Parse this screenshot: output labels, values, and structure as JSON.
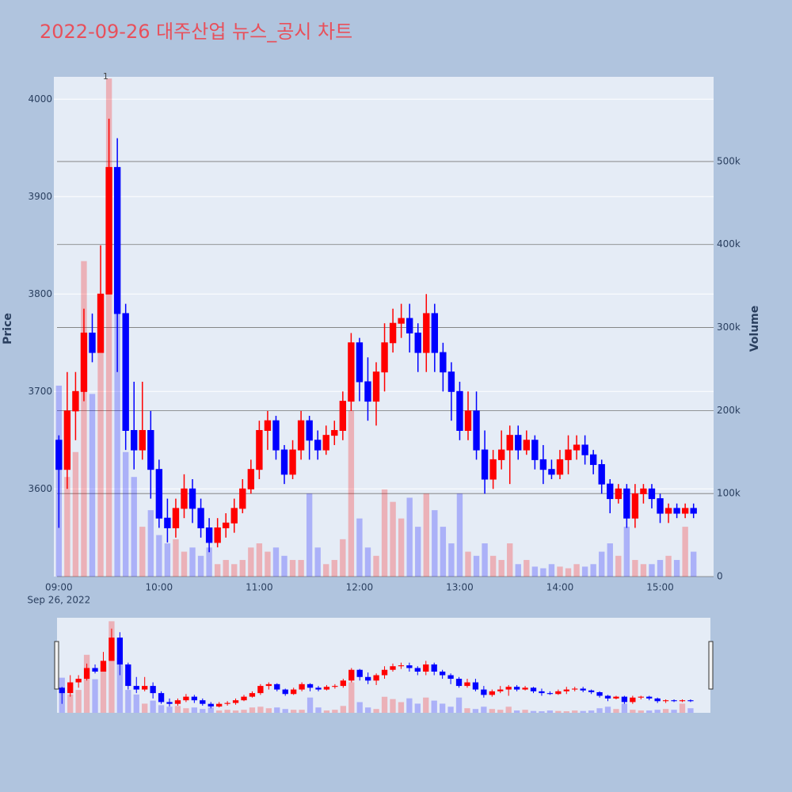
{
  "chart_data": {
    "type": "candlestick",
    "title": "2022-09-26 대주산업 뉴스_공시 차트",
    "y_label": "Price",
    "y2_label": "Volume",
    "x": [
      "09:00",
      "09:05",
      "09:10",
      "09:15",
      "09:20",
      "09:25",
      "09:30",
      "09:35",
      "09:40",
      "09:45",
      "09:50",
      "09:55",
      "10:00",
      "10:05",
      "10:10",
      "10:15",
      "10:20",
      "10:25",
      "10:30",
      "10:35",
      "10:40",
      "10:45",
      "10:50",
      "10:55",
      "11:00",
      "11:05",
      "11:10",
      "11:15",
      "11:20",
      "11:25",
      "11:30",
      "11:35",
      "11:40",
      "11:45",
      "11:50",
      "11:55",
      "12:00",
      "12:05",
      "12:10",
      "12:15",
      "12:20",
      "12:25",
      "12:30",
      "12:35",
      "12:40",
      "12:45",
      "12:50",
      "12:55",
      "13:00",
      "13:05",
      "13:10",
      "13:15",
      "13:20",
      "13:25",
      "13:30",
      "13:35",
      "13:40",
      "13:45",
      "13:50",
      "13:55",
      "14:00",
      "14:05",
      "14:10",
      "14:15",
      "14:20",
      "14:25",
      "14:30",
      "14:35",
      "14:40",
      "14:45",
      "14:50",
      "14:55",
      "15:00",
      "15:05",
      "15:10",
      "15:15",
      "15:20"
    ],
    "open": [
      3650,
      3620,
      3680,
      3700,
      3760,
      3740,
      3800,
      3930,
      3780,
      3660,
      3640,
      3660,
      3620,
      3570,
      3560,
      3580,
      3600,
      3580,
      3560,
      3545,
      3560,
      3565,
      3580,
      3600,
      3620,
      3660,
      3670,
      3640,
      3615,
      3640,
      3670,
      3650,
      3640,
      3655,
      3660,
      3690,
      3750,
      3710,
      3690,
      3720,
      3750,
      3770,
      3775,
      3760,
      3740,
      3780,
      3740,
      3720,
      3700,
      3660,
      3680,
      3640,
      3610,
      3630,
      3640,
      3655,
      3640,
      3650,
      3630,
      3620,
      3615,
      3630,
      3640,
      3645,
      3635,
      3625,
      3605,
      3590,
      3600,
      3570,
      3595,
      3600,
      3590,
      3575,
      3580,
      3575,
      3580
    ],
    "high": [
      3655,
      3720,
      3720,
      3785,
      3780,
      3850,
      3980,
      3960,
      3790,
      3710,
      3710,
      3680,
      3630,
      3590,
      3590,
      3615,
      3610,
      3590,
      3570,
      3570,
      3575,
      3590,
      3610,
      3630,
      3670,
      3680,
      3675,
      3645,
      3650,
      3680,
      3675,
      3660,
      3665,
      3670,
      3700,
      3760,
      3755,
      3735,
      3730,
      3770,
      3785,
      3790,
      3790,
      3770,
      3800,
      3790,
      3750,
      3730,
      3710,
      3700,
      3700,
      3660,
      3640,
      3660,
      3665,
      3665,
      3660,
      3655,
      3645,
      3630,
      3640,
      3655,
      3655,
      3655,
      3640,
      3630,
      3610,
      3605,
      3605,
      3605,
      3605,
      3605,
      3595,
      3585,
      3585,
      3585,
      3585
    ],
    "low": [
      3560,
      3600,
      3650,
      3690,
      3730,
      3740,
      3800,
      3720,
      3640,
      3620,
      3630,
      3590,
      3560,
      3545,
      3550,
      3570,
      3565,
      3550,
      3535,
      3540,
      3550,
      3555,
      3575,
      3595,
      3610,
      3640,
      3630,
      3605,
      3610,
      3630,
      3630,
      3630,
      3635,
      3645,
      3650,
      3680,
      3690,
      3670,
      3665,
      3700,
      3740,
      3755,
      3740,
      3720,
      3720,
      3720,
      3700,
      3670,
      3650,
      3650,
      3630,
      3595,
      3600,
      3620,
      3605,
      3630,
      3635,
      3620,
      3605,
      3610,
      3610,
      3615,
      3630,
      3625,
      3615,
      3595,
      3575,
      3585,
      3560,
      3560,
      3585,
      3580,
      3565,
      3565,
      3570,
      3570,
      3570
    ],
    "close": [
      3620,
      3680,
      3700,
      3760,
      3740,
      3800,
      3930,
      3780,
      3660,
      3640,
      3660,
      3620,
      3570,
      3560,
      3580,
      3600,
      3580,
      3560,
      3545,
      3560,
      3565,
      3580,
      3600,
      3620,
      3660,
      3670,
      3640,
      3615,
      3640,
      3670,
      3650,
      3640,
      3655,
      3660,
      3690,
      3750,
      3710,
      3690,
      3720,
      3750,
      3770,
      3775,
      3760,
      3740,
      3780,
      3740,
      3720,
      3700,
      3660,
      3680,
      3640,
      3610,
      3630,
      3640,
      3655,
      3640,
      3650,
      3630,
      3620,
      3615,
      3630,
      3640,
      3645,
      3635,
      3625,
      3605,
      3590,
      3600,
      3570,
      3595,
      3600,
      3590,
      3575,
      3580,
      3575,
      3580,
      3575
    ],
    "volume": [
      230000,
      120000,
      150000,
      380000,
      220000,
      300000,
      600000,
      360000,
      150000,
      120000,
      60000,
      80000,
      50000,
      40000,
      45000,
      30000,
      35000,
      25000,
      35000,
      15000,
      20000,
      15000,
      20000,
      35000,
      40000,
      30000,
      35000,
      25000,
      20000,
      20000,
      100000,
      35000,
      15000,
      20000,
      45000,
      200000,
      70000,
      35000,
      25000,
      105000,
      90000,
      70000,
      95000,
      60000,
      100000,
      80000,
      60000,
      40000,
      100000,
      30000,
      25000,
      40000,
      25000,
      20000,
      40000,
      15000,
      20000,
      12000,
      10000,
      15000,
      12000,
      10000,
      15000,
      12000,
      15000,
      30000,
      40000,
      25000,
      60000,
      20000,
      15000,
      15000,
      20000,
      25000,
      20000,
      60000,
      30000
    ],
    "increasing_color": "#ff0000",
    "decreasing_color": "#0000ff",
    "xlim": [
      "08:57",
      "15:32"
    ],
    "xticks": [
      "09:00",
      "10:00",
      "11:00",
      "12:00",
      "13:00",
      "14:00",
      "15:00"
    ],
    "x_date_label": "Sep 26, 2022",
    "ylim": [
      3510,
      4023
    ],
    "yticks": [
      3600,
      3700,
      3800,
      3900,
      4000
    ],
    "y2lim": [
      0,
      602000
    ],
    "y2ticks": [
      0,
      {
        "value": 100000,
        "label": "100k"
      },
      {
        "value": 200000,
        "label": "200k"
      },
      {
        "value": 300000,
        "label": "300k"
      },
      {
        "value": 400000,
        "label": "400k"
      },
      {
        "value": 500000,
        "label": "500k"
      }
    ],
    "annotations": [
      {
        "x": "09:28",
        "text": "1"
      }
    ],
    "grid": true,
    "rangeslider": true
  }
}
